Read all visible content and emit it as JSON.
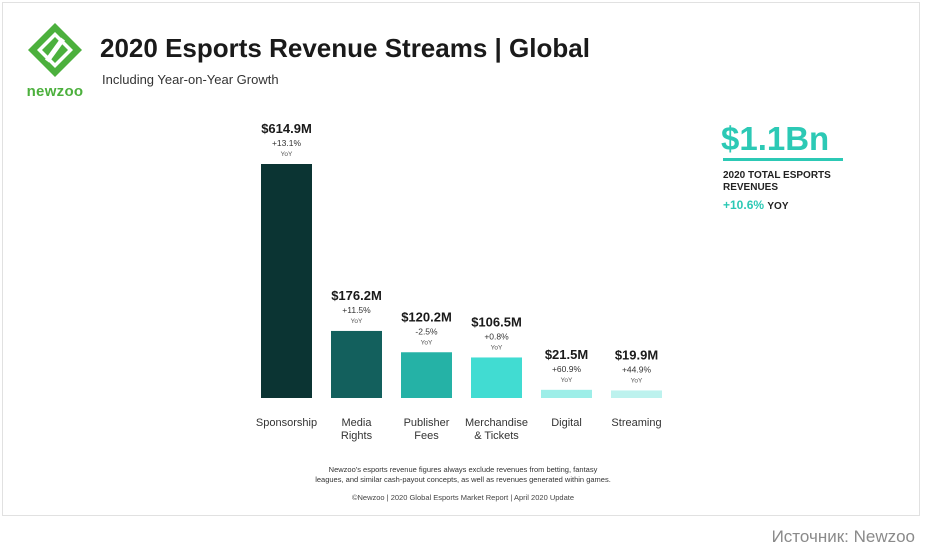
{
  "brand": {
    "name": "newzoo"
  },
  "header": {
    "title": "2020 Esports Revenue Streams | Global",
    "subtitle": "Including Year-on-Year Growth"
  },
  "total": {
    "value": "$1.1Bn",
    "label": "2020 TOTAL ESPORTS REVENUES",
    "yoy_value": "+10.6%",
    "yoy_unit": "YOY"
  },
  "chart_data": {
    "type": "bar",
    "categories": [
      [
        "Sponsorship"
      ],
      [
        "Media",
        "Rights"
      ],
      [
        "Publisher",
        "Fees"
      ],
      [
        "Merchandise",
        "& Tickets"
      ],
      [
        "Digital"
      ],
      [
        "Streaming"
      ]
    ],
    "values": [
      614.9,
      176.2,
      120.2,
      106.5,
      21.5,
      19.9
    ],
    "value_labels": [
      "$614.9M",
      "$176.2M",
      "$120.2M",
      "$106.5M",
      "$21.5M",
      "$19.9M"
    ],
    "growth_labels": [
      "+13.1%",
      "+11.5%",
      "-2.5%",
      "+0.8%",
      "+60.9%",
      "+44.9%"
    ],
    "growth_unit": "YoY",
    "colors": [
      "#0b3433",
      "#13605d",
      "#25b2a6",
      "#41dcd2",
      "#9deee8",
      "#bdf2ee"
    ],
    "ylim": [
      0,
      614.9
    ],
    "grid": false,
    "legend": "none"
  },
  "notes": {
    "disclaimer_line1": "Newzoo's esports revenue figures always exclude revenues from betting, fantasy",
    "disclaimer_line2": "leagues, and similar cash-payout concepts, as well as revenues generated within games.",
    "credit": "©Newzoo | 2020 Global Esports Market Report | April 2020 Update"
  },
  "source": "Источник: Newzoo",
  "colors": {
    "brand_green": "#4cb03d",
    "accent_teal": "#2cc9b5"
  }
}
